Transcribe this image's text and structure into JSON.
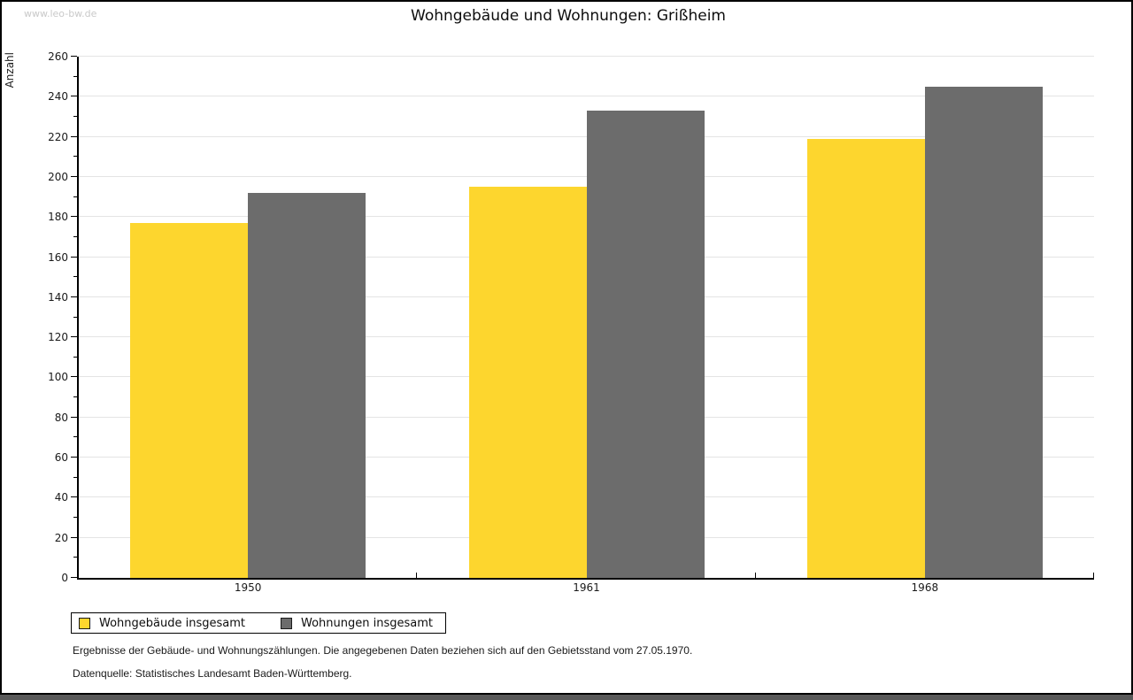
{
  "page": {
    "watermark": "www.leo-bw.de",
    "title": "Wohngebäude und Wohnungen: Grißheim",
    "footnote1": "Ergebnisse der Gebäude- und Wohnungszählungen. Die angegebenen Daten beziehen sich auf den Gebietsstand vom 27.05.1970.",
    "footnote2": "Datenquelle: Statistisches Landesamt Baden-Württemberg."
  },
  "chart_data": {
    "type": "bar",
    "title": "Wohngebäude und Wohnungen: Grißheim",
    "categories": [
      "1950",
      "1961",
      "1968"
    ],
    "series": [
      {
        "name": "Wohngebäude insgesamt",
        "color": "#FDD62E",
        "values": [
          177,
          195,
          219
        ]
      },
      {
        "name": "Wohnungen insgesamt",
        "color": "#6C6C6C",
        "values": [
          192,
          233,
          245
        ]
      }
    ],
    "ylabel": "Anzahl",
    "xlabel": "",
    "ylim": [
      0,
      260
    ],
    "ytick_step": 20,
    "minor_tick_step": 10,
    "grid": "horizontal",
    "gridline_color": "#e4e4e4",
    "legend_position": "bottom-left",
    "legend_entries": [
      "Wohngebäude insgesamt",
      "Wohnungen insgesamt"
    ]
  }
}
